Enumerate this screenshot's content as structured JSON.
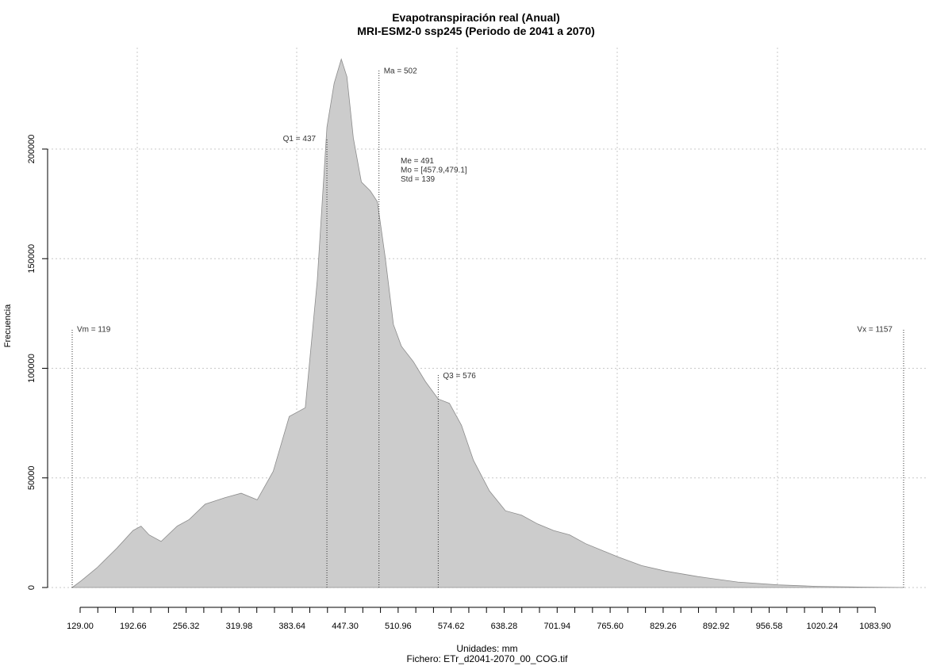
{
  "chart_data": {
    "type": "area",
    "title": "Evapotranspiración real (Anual)",
    "subtitle": "MRI-ESM2-0 ssp245 (Periodo de 2041 a 2070)",
    "xlabel": "Unidades: mm",
    "footer": "Fichero: ETr_d2041-2070_00_COG.tif",
    "ylabel": "Frecuencia",
    "xlim": [
      119,
      1157
    ],
    "ylim": [
      0,
      240000
    ],
    "grid": true,
    "x_ticks_labeled": [
      "129.00",
      "192.66",
      "256.32",
      "319.98",
      "383.64",
      "447.30",
      "510.96",
      "574.62",
      "638.28",
      "701.94",
      "765.60",
      "829.26",
      "892.92",
      "956.58",
      "1020.24",
      "1083.90"
    ],
    "y_ticks": [
      "0",
      "50000",
      "100000",
      "150000",
      "200000"
    ],
    "series": [
      {
        "x": [
          119,
          130,
          150,
          175,
          195,
          205,
          215,
          230,
          250,
          265,
          285,
          310,
          330,
          350,
          370,
          390,
          410,
          425,
          437,
          446,
          455,
          462,
          470,
          480,
          491,
          500,
          510,
          520,
          530,
          545,
          560,
          576,
          590,
          605,
          620,
          640,
          660,
          680,
          700,
          720,
          740,
          760,
          780,
          800,
          830,
          860,
          900,
          950,
          1000,
          1050,
          1100,
          1150,
          1157
        ],
        "values": [
          0,
          3000,
          9000,
          18000,
          26000,
          28000,
          24000,
          21000,
          28000,
          31000,
          38000,
          41000,
          43000,
          40000,
          53000,
          78000,
          82000,
          140000,
          210000,
          230000,
          241000,
          233000,
          205000,
          185000,
          181000,
          176000,
          150000,
          120000,
          110000,
          103000,
          94000,
          86000,
          84000,
          74000,
          58000,
          44000,
          35000,
          33000,
          29000,
          26000,
          24000,
          20000,
          17000,
          14000,
          10000,
          7500,
          5000,
          2500,
          1200,
          500,
          200,
          50,
          0
        ]
      }
    ],
    "annotations": [
      {
        "label": "Vm = 119",
        "x": 119,
        "line_top": 118000
      },
      {
        "label": "Q1 = 437",
        "x": 437,
        "line_top": 205000
      },
      {
        "label": "Ma = 502",
        "x": 502,
        "line_top": 236000
      },
      {
        "label": "Q3 = 576",
        "x": 576,
        "line_top": 97000
      },
      {
        "label": "Vx = 1157",
        "x": 1157,
        "line_top": 118000
      }
    ],
    "stats": [
      "Me = 491",
      "Mo = [457.9,479.1]",
      "Std = 139"
    ],
    "fill_color": "#cccccc",
    "outline_color": "#8c8c8c",
    "grid_color": "#c8c8c8"
  }
}
